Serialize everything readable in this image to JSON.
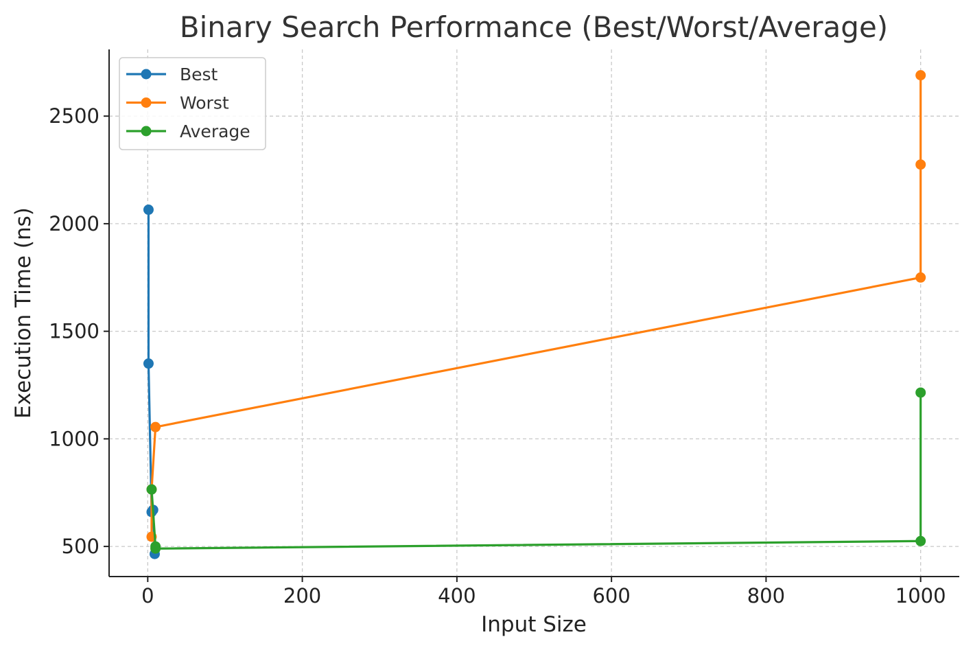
{
  "chart_data": {
    "type": "line",
    "title": "Binary Search Performance (Best/Worst/Average)",
    "xlabel": "Input Size",
    "ylabel": "Execution Time (ns)",
    "xlim": [
      -50,
      1050
    ],
    "ylim": [
      360,
      2810
    ],
    "xticks": [
      0,
      200,
      400,
      600,
      800,
      1000
    ],
    "yticks": [
      500,
      1000,
      1500,
      2000,
      2500
    ],
    "grid": true,
    "legend_position": "top-left",
    "series": [
      {
        "name": "Best",
        "color": "#1f77b4",
        "x": [
          1,
          1,
          5,
          7,
          9
        ],
        "y": [
          2065,
          1350,
          660,
          670,
          465
        ]
      },
      {
        "name": "Worst",
        "color": "#ff7f0e",
        "x": [
          5,
          5,
          10,
          1000,
          1000,
          1000
        ],
        "y": [
          545,
          765,
          1055,
          1750,
          2275,
          2690
        ]
      },
      {
        "name": "Average",
        "color": "#2ca02c",
        "x": [
          5,
          10,
          10,
          1000,
          1000
        ],
        "y": [
          765,
          500,
          490,
          525,
          1215
        ]
      }
    ]
  }
}
